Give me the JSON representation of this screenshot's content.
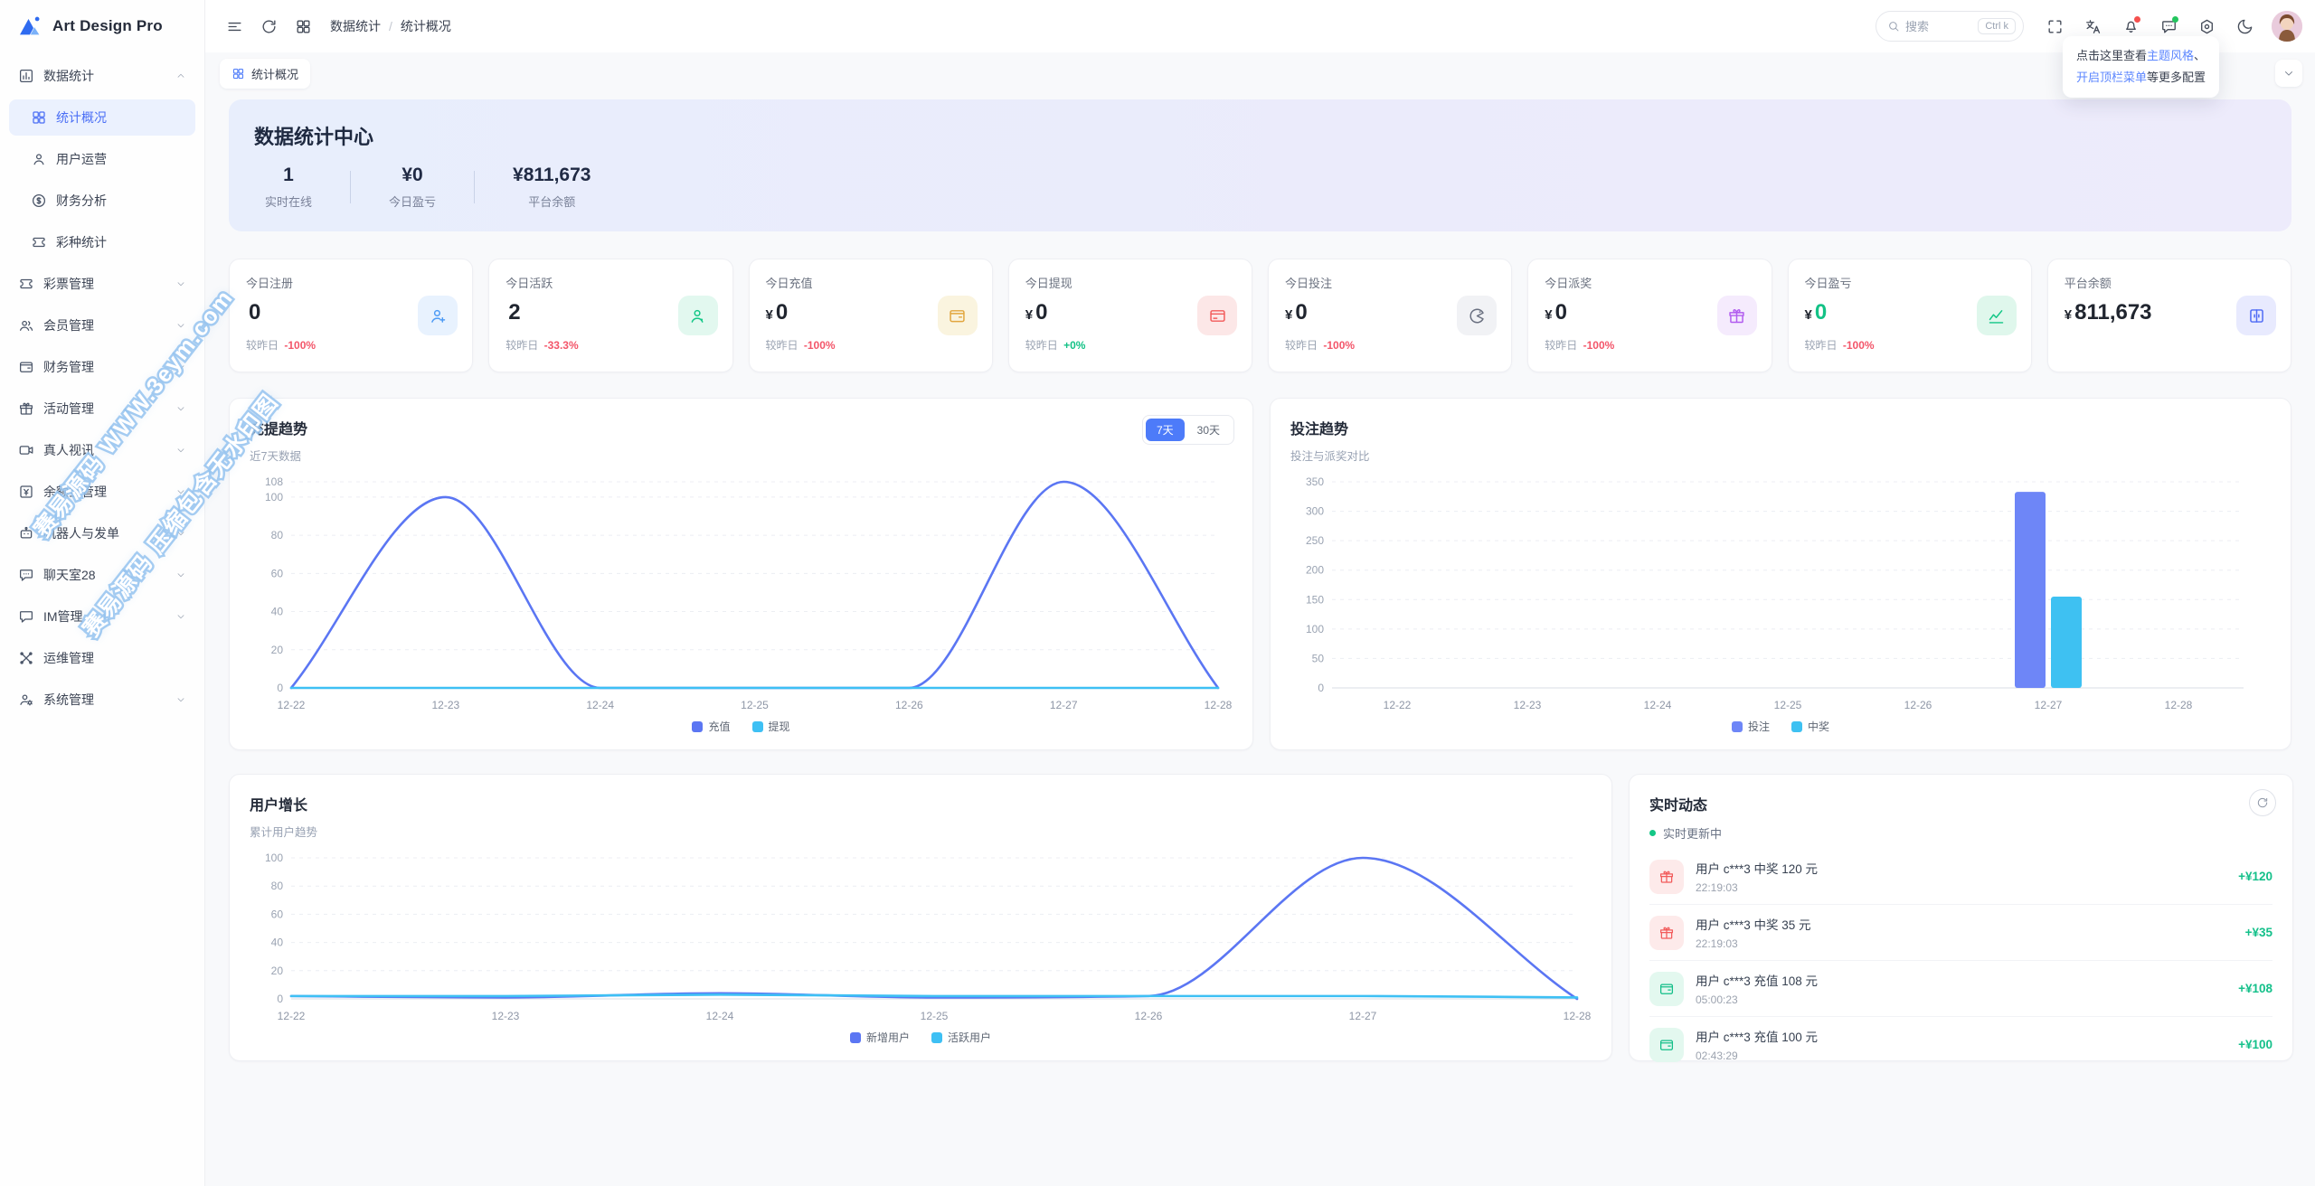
{
  "app": {
    "name": "Art Design Pro"
  },
  "header": {
    "breadcrumb": {
      "0": "数据统计",
      "sep": "/",
      "1": "统计概况"
    },
    "search": {
      "placeholder": "搜索",
      "shortcut": "Ctrl k"
    },
    "tooltip": {
      "pre": "点击这里查看",
      "link1": "主题风格",
      "mid": "、",
      "link2": "开启顶栏菜单",
      "post": "等更多配置"
    }
  },
  "tabbar": {
    "active_tab": "统计概况"
  },
  "sidebar": {
    "items": [
      {
        "label": "数据统计",
        "icon": "chart-bar-icon",
        "expanded": true,
        "children": [
          {
            "label": "统计概况",
            "icon": "grid-icon",
            "active": true
          },
          {
            "label": "用户运营",
            "icon": "user-icon"
          },
          {
            "label": "财务分析",
            "icon": "dollar-circle-icon"
          },
          {
            "label": "彩种统计",
            "icon": "ticket-icon"
          }
        ]
      },
      {
        "label": "彩票管理",
        "icon": "ticket-icon",
        "chevron": true
      },
      {
        "label": "会员管理",
        "icon": "users-icon",
        "chevron": true
      },
      {
        "label": "财务管理",
        "icon": "wallet-icon",
        "chevron": true
      },
      {
        "label": "活动管理",
        "icon": "gift-icon",
        "chevron": true
      },
      {
        "label": "真人视讯",
        "icon": "video-icon",
        "chevron": true
      },
      {
        "label": "余额宝管理",
        "icon": "yen-square-icon",
        "chevron": true
      },
      {
        "label": "机器人与发单",
        "icon": "robot-icon",
        "chevron": true
      },
      {
        "label": "聊天室28",
        "icon": "chat-dots-icon",
        "chevron": true
      },
      {
        "label": "IM管理",
        "icon": "message-icon",
        "chevron": true
      },
      {
        "label": "运维管理",
        "icon": "tools-icon",
        "chevron": false
      },
      {
        "label": "系统管理",
        "icon": "user-gear-icon",
        "chevron": true
      }
    ]
  },
  "hero": {
    "title": "数据统计中心",
    "stats": [
      {
        "value": "1",
        "label": "实时在线"
      },
      {
        "value": "¥0",
        "label": "今日盈亏"
      },
      {
        "value": "¥811,673",
        "label": "平台余额"
      }
    ]
  },
  "stats_meta": {
    "delta_label": "较昨日"
  },
  "stat_cards": [
    {
      "label": "今日注册",
      "prefix": "",
      "value": "0",
      "delta": "-100%",
      "icon": "user-add-icon",
      "icon_color": "#4D9BF5",
      "icon_bg": "#E8F2FE"
    },
    {
      "label": "今日活跃",
      "prefix": "",
      "value": "2",
      "delta": "-33.3%",
      "icon": "user-active-icon",
      "icon_color": "#12C786",
      "icon_bg": "#E2F8EF"
    },
    {
      "label": "今日充值",
      "prefix": "¥",
      "value": "0",
      "delta": "-100%",
      "icon": "wallet-icon",
      "icon_color": "#E2A63F",
      "icon_bg": "#FAF4DF"
    },
    {
      "label": "今日提现",
      "prefix": "¥",
      "value": "0",
      "delta": "+0%",
      "icon": "card-icon",
      "icon_color": "#F25B5B",
      "icon_bg": "#FCE7E7"
    },
    {
      "label": "今日投注",
      "prefix": "¥",
      "value": "0",
      "delta": "-100%",
      "icon": "game-icon",
      "icon_color": "#6A7080",
      "icon_bg": "#F1F2F5"
    },
    {
      "label": "今日派奖",
      "prefix": "¥",
      "value": "0",
      "delta": "-100%",
      "icon": "gift-icon",
      "icon_color": "#B25CEF",
      "icon_bg": "#F5EBFD"
    },
    {
      "label": "今日盈亏",
      "prefix": "¥",
      "value": "0",
      "value_color": "#13C286",
      "delta": "-100%",
      "icon": "trend-icon",
      "icon_color": "#12C786",
      "icon_bg": "#DFF7EC"
    },
    {
      "label": "平台余额",
      "prefix": "¥",
      "value": "811,673",
      "delta": "",
      "icon": "bank-icon",
      "icon_color": "#4E6AF5",
      "icon_bg": "#E8EAFE"
    }
  ],
  "chart_data": [
    {
      "id": "deposit_trend",
      "type": "line",
      "title": "充提趋势",
      "subtitle": "近7天数据",
      "range_buttons": [
        "7天",
        "30天"
      ],
      "active_range": "7天",
      "categories": [
        "12-22",
        "12-23",
        "12-24",
        "12-25",
        "12-26",
        "12-27",
        "12-28"
      ],
      "series": [
        {
          "name": "充值",
          "color": "#5B76F3",
          "values": [
            0,
            100,
            0,
            0,
            0,
            108,
            0
          ]
        },
        {
          "name": "提现",
          "color": "#3EC0F4",
          "values": [
            0,
            0,
            0,
            0,
            0,
            0,
            0
          ]
        }
      ],
      "y_ticks": [
        0,
        20,
        40,
        60,
        80,
        100,
        108
      ],
      "ylim": [
        0,
        108
      ],
      "grid": "dashed",
      "legend_position": "bottom",
      "smooth": true
    },
    {
      "id": "bet_trend",
      "type": "bar",
      "title": "投注趋势",
      "subtitle": "投注与派奖对比",
      "categories": [
        "12-22",
        "12-23",
        "12-24",
        "12-25",
        "12-26",
        "12-27",
        "12-28"
      ],
      "series": [
        {
          "name": "投注",
          "color": "#6E86F7",
          "values": [
            0,
            0,
            0,
            0,
            0,
            333,
            0
          ]
        },
        {
          "name": "中奖",
          "color": "#3EC1F2",
          "values": [
            0,
            0,
            0,
            0,
            0,
            155,
            0
          ]
        }
      ],
      "y_ticks": [
        0,
        50,
        100,
        150,
        200,
        250,
        300,
        350
      ],
      "ylim": [
        0,
        350
      ],
      "grid": "dashed",
      "legend_position": "bottom"
    },
    {
      "id": "user_growth",
      "type": "line",
      "title": "用户增长",
      "subtitle": "累计用户趋势",
      "categories": [
        "12-22",
        "12-23",
        "12-24",
        "12-25",
        "12-26",
        "12-27",
        "12-28"
      ],
      "series": [
        {
          "name": "新增用户",
          "color": "#5B76F3",
          "values": [
            2,
            1,
            4,
            1,
            2,
            100,
            0
          ]
        },
        {
          "name": "活跃用户",
          "color": "#3EC0F4",
          "values": [
            2,
            2,
            3,
            2,
            2,
            2,
            1
          ]
        }
      ],
      "y_ticks": [
        0,
        20,
        40,
        60,
        80,
        100
      ],
      "ylim": [
        0,
        100
      ],
      "grid": "dashed",
      "legend_position": "bottom",
      "smooth": true
    }
  ],
  "activity": {
    "title": "实时动态",
    "status": "实时更新中",
    "items": [
      {
        "icon": "gift-icon",
        "icon_color": "#F25B5B",
        "icon_bg": "#FDEAEA",
        "title": "用户 c***3 中奖 120 元",
        "time": "22:19:03",
        "amount": "+¥120"
      },
      {
        "icon": "gift-icon",
        "icon_color": "#F25B5B",
        "icon_bg": "#FDEAEA",
        "title": "用户 c***3 中奖 35 元",
        "time": "22:19:03",
        "amount": "+¥35"
      },
      {
        "icon": "wallet-icon",
        "icon_color": "#12BE88",
        "icon_bg": "#E3F8EF",
        "title": "用户 c***3 充值 108 元",
        "time": "05:00:23",
        "amount": "+¥108"
      },
      {
        "icon": "wallet-icon",
        "icon_color": "#12BE88",
        "icon_bg": "#E3F8EF",
        "title": "用户 c***3 充值 100 元",
        "time": "02:43:29",
        "amount": "+¥100"
      }
    ]
  },
  "watermark": {
    "line1": "赛易源码 WWW.3eym.com",
    "line2": "赛易源码 压缩包含无水印图"
  },
  "colors": {
    "primary": "#4D7BF9",
    "line_blue": "#5B76F3",
    "line_cyan": "#3EC0F4",
    "green": "#13C286",
    "red": "#F3566A"
  }
}
